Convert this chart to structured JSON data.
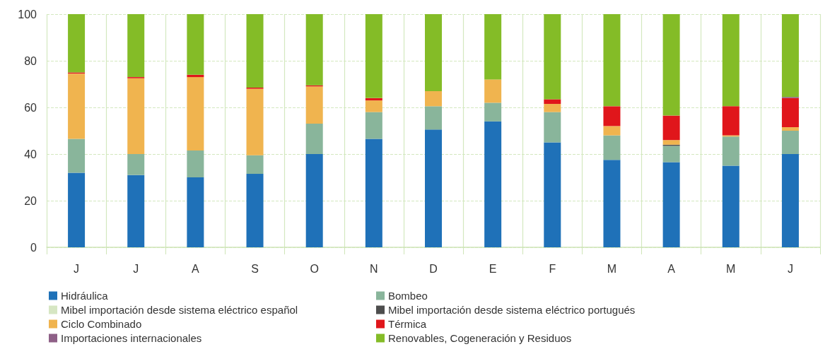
{
  "chart_data": {
    "type": "bar",
    "stacked": true,
    "categories": [
      "J",
      "J",
      "A",
      "S",
      "O",
      "N",
      "D",
      "E",
      "F",
      "M",
      "A",
      "M",
      "J"
    ],
    "series": [
      {
        "name": "Hidráulica",
        "color": "#1f71b8",
        "values": [
          32,
          31,
          30,
          31.5,
          40,
          46.5,
          50.5,
          54,
          45,
          37.5,
          36.5,
          35,
          40
        ]
      },
      {
        "name": "Bombeo",
        "color": "#89b59b",
        "values": [
          14.5,
          9,
          11.5,
          8,
          13,
          11.5,
          10,
          8,
          13,
          10.5,
          7,
          12.5,
          10
        ]
      },
      {
        "name": "Mibel importación desde sistema eléctrico español",
        "color": "#d6e6c3",
        "values": [
          0,
          0,
          0,
          0,
          0,
          0,
          0,
          0,
          0,
          0,
          0,
          0,
          0
        ]
      },
      {
        "name": "Mibel importación desde sistema eléctrico portugués",
        "color": "#4d4d4d",
        "values": [
          0,
          0,
          0,
          0,
          0,
          0,
          0,
          0,
          0,
          0,
          0.5,
          0,
          0
        ]
      },
      {
        "name": "Ciclo Combinado",
        "color": "#f0b44f",
        "values": [
          28,
          32.5,
          31.5,
          28.5,
          16,
          5,
          6.5,
          10,
          3.5,
          4,
          2,
          0.5,
          1.5
        ]
      },
      {
        "name": "Térmica",
        "color": "#e0161b",
        "values": [
          0.5,
          0.5,
          1,
          0.5,
          0.5,
          1,
          0,
          0,
          2,
          8.5,
          10.5,
          12.5,
          12.5
        ]
      },
      {
        "name": "Importaciones internacionales",
        "color": "#8e6087",
        "values": [
          0,
          0,
          0,
          0,
          0,
          0,
          0,
          0,
          0,
          0,
          0,
          0,
          0.5
        ]
      },
      {
        "name": "Renovables, Cogeneración y Residuos",
        "color": "#84bc27",
        "values": [
          25,
          27,
          26,
          31.5,
          30.5,
          36,
          33,
          28,
          36.5,
          39.5,
          43.5,
          39.5,
          35.5
        ]
      }
    ],
    "ylim": [
      0,
      100
    ],
    "yticks": [
      0,
      20,
      40,
      60,
      80,
      100
    ],
    "grid": true,
    "legend": "bottom"
  }
}
